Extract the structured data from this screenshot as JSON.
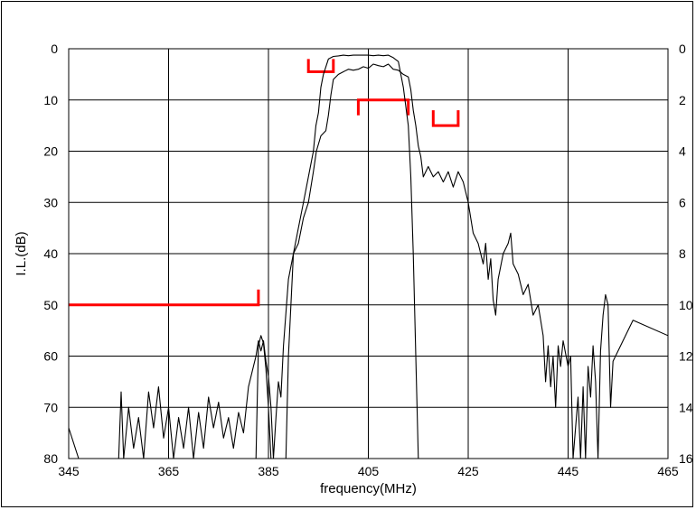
{
  "chart_data": {
    "type": "line",
    "xlabel": "frequency(MHz)",
    "ylabel": "I.L.(dB)",
    "xlim": [
      345,
      465
    ],
    "ylim_left": [
      0,
      80
    ],
    "ylim_right": [
      0,
      16
    ],
    "left_axis_inverted": true,
    "right_axis_inverted": true,
    "x_ticks": [
      "345",
      "365",
      "385",
      "405",
      "425",
      "445",
      "465"
    ],
    "y_ticks_left": [
      "0",
      "10",
      "20",
      "30",
      "40",
      "50",
      "60",
      "70",
      "80"
    ],
    "y_ticks_right": [
      "0",
      "2",
      "4",
      "6",
      "8",
      "10",
      "12",
      "14",
      "16"
    ],
    "grid": true,
    "line_color": "#000000",
    "mask_color": "#ff0000",
    "series": [
      {
        "axis": "left",
        "points": [
          [
            345,
            74
          ],
          [
            347,
            80
          ],
          [
            355,
            80
          ],
          [
            355.5,
            67
          ],
          [
            356,
            80
          ],
          [
            357,
            70
          ],
          [
            358,
            78
          ],
          [
            359,
            72
          ],
          [
            360,
            80
          ],
          [
            361,
            67
          ],
          [
            362,
            74
          ],
          [
            363,
            66
          ],
          [
            364,
            76
          ],
          [
            365,
            70
          ],
          [
            366,
            80
          ],
          [
            367,
            72
          ],
          [
            368,
            78
          ],
          [
            369,
            70
          ],
          [
            370,
            80
          ],
          [
            371,
            71
          ],
          [
            372,
            78
          ],
          [
            373,
            68
          ],
          [
            374,
            74
          ],
          [
            375,
            69
          ],
          [
            376,
            76
          ],
          [
            377,
            72
          ],
          [
            378,
            78
          ],
          [
            379,
            71
          ],
          [
            380,
            75
          ],
          [
            381,
            66
          ],
          [
            382,
            62
          ],
          [
            382.5,
            60
          ],
          [
            383,
            57
          ],
          [
            383.5,
            59
          ],
          [
            384,
            57
          ],
          [
            384.5,
            61
          ],
          [
            385,
            64
          ],
          [
            385.5,
            70
          ],
          [
            386,
            80
          ],
          [
            386.5,
            72
          ],
          [
            387,
            65
          ],
          [
            387.5,
            68
          ],
          [
            388,
            58
          ],
          [
            389,
            45
          ],
          [
            390,
            40
          ],
          [
            391,
            38
          ],
          [
            392,
            33
          ],
          [
            393,
            30
          ],
          [
            394,
            24
          ],
          [
            394.6,
            20
          ],
          [
            395.5,
            17
          ],
          [
            396.5,
            16
          ],
          [
            397,
            13
          ],
          [
            397.5,
            9
          ],
          [
            398,
            6
          ],
          [
            399,
            5
          ],
          [
            400,
            4.5
          ],
          [
            401,
            4
          ],
          [
            402,
            4.2
          ],
          [
            403,
            4
          ],
          [
            404,
            3.5
          ],
          [
            405,
            3.8
          ],
          [
            406,
            3
          ],
          [
            407,
            3.3
          ],
          [
            408,
            3.5
          ],
          [
            409,
            3
          ],
          [
            410,
            4
          ],
          [
            411,
            4.2
          ],
          [
            412,
            5
          ],
          [
            413,
            5.5
          ],
          [
            413.5,
            8
          ],
          [
            414,
            12
          ],
          [
            414.5,
            15
          ],
          [
            415,
            19
          ],
          [
            415.5,
            21
          ],
          [
            416,
            25
          ],
          [
            417,
            23
          ],
          [
            418,
            25
          ],
          [
            419,
            24
          ],
          [
            420,
            26
          ],
          [
            421,
            24
          ],
          [
            422,
            27
          ],
          [
            423,
            24
          ],
          [
            424,
            26
          ],
          [
            425,
            30
          ],
          [
            426,
            36
          ],
          [
            427,
            38
          ],
          [
            428,
            42
          ],
          [
            428.5,
            38
          ],
          [
            429,
            45
          ],
          [
            429.5,
            41
          ],
          [
            430,
            49
          ],
          [
            430.5,
            52
          ],
          [
            431,
            45
          ],
          [
            432,
            40
          ],
          [
            433,
            38
          ],
          [
            433.5,
            36
          ],
          [
            434,
            42
          ],
          [
            435,
            44
          ],
          [
            436,
            48
          ],
          [
            437,
            46
          ],
          [
            438,
            52
          ],
          [
            439,
            50
          ],
          [
            440,
            56
          ],
          [
            440.5,
            65
          ],
          [
            441,
            58
          ],
          [
            441.5,
            66
          ],
          [
            442,
            60
          ],
          [
            442.5,
            70
          ],
          [
            443,
            58
          ],
          [
            443.5,
            62
          ],
          [
            444,
            57
          ],
          [
            445,
            62
          ],
          [
            445.5,
            60
          ],
          [
            446,
            80
          ],
          [
            447,
            68
          ],
          [
            447.5,
            80
          ],
          [
            448,
            66
          ],
          [
            448.5,
            80
          ],
          [
            449,
            62
          ],
          [
            449.5,
            68
          ],
          [
            450,
            58
          ],
          [
            450.5,
            65
          ],
          [
            451,
            80
          ],
          [
            451.5,
            59
          ],
          [
            452,
            52
          ],
          [
            452.5,
            48
          ],
          [
            453,
            50
          ],
          [
            453.5,
            70
          ],
          [
            454,
            61
          ],
          [
            458,
            53
          ],
          [
            465,
            56
          ]
        ]
      },
      {
        "axis": "right",
        "points": [
          [
            382.5,
            16
          ],
          [
            383,
            11.6
          ],
          [
            383.5,
            11.2
          ],
          [
            384,
            11.5
          ],
          [
            384.5,
            12.5
          ],
          [
            385,
            14
          ],
          [
            385.5,
            16
          ],
          [
            388.5,
            16
          ],
          [
            389,
            12
          ],
          [
            390,
            8
          ],
          [
            391,
            7
          ],
          [
            392,
            6
          ],
          [
            393,
            5
          ],
          [
            394,
            4
          ],
          [
            394.5,
            3
          ],
          [
            395,
            2.5
          ],
          [
            395.5,
            1.5
          ],
          [
            396,
            1
          ],
          [
            397,
            0.4
          ],
          [
            398,
            0.3
          ],
          [
            399,
            0.28
          ],
          [
            400,
            0.25
          ],
          [
            401,
            0.27
          ],
          [
            402,
            0.25
          ],
          [
            403,
            0.25
          ],
          [
            404,
            0.25
          ],
          [
            405,
            0.25
          ],
          [
            406,
            0.27
          ],
          [
            407,
            0.25
          ],
          [
            408,
            0.27
          ],
          [
            409,
            0.25
          ],
          [
            410,
            0.35
          ],
          [
            411,
            0.5
          ],
          [
            412,
            1.5
          ],
          [
            413,
            3
          ],
          [
            413.5,
            5
          ],
          [
            414,
            8
          ],
          [
            414.5,
            12
          ],
          [
            415,
            16
          ]
        ]
      }
    ],
    "masks": [
      {
        "axis": "left",
        "points": [
          [
            345,
            50
          ],
          [
            383,
            50
          ],
          [
            383,
            47
          ]
        ]
      },
      {
        "axis": "left",
        "points": [
          [
            393,
            2
          ],
          [
            393,
            4.5
          ],
          [
            398,
            4.5
          ],
          [
            398,
            2
          ]
        ]
      },
      {
        "axis": "left",
        "points": [
          [
            403,
            13
          ],
          [
            403,
            10
          ],
          [
            413,
            10
          ],
          [
            413,
            13
          ]
        ]
      },
      {
        "axis": "left",
        "points": [
          [
            418,
            12
          ],
          [
            418,
            15
          ],
          [
            423,
            15
          ],
          [
            423,
            12
          ]
        ]
      }
    ]
  }
}
